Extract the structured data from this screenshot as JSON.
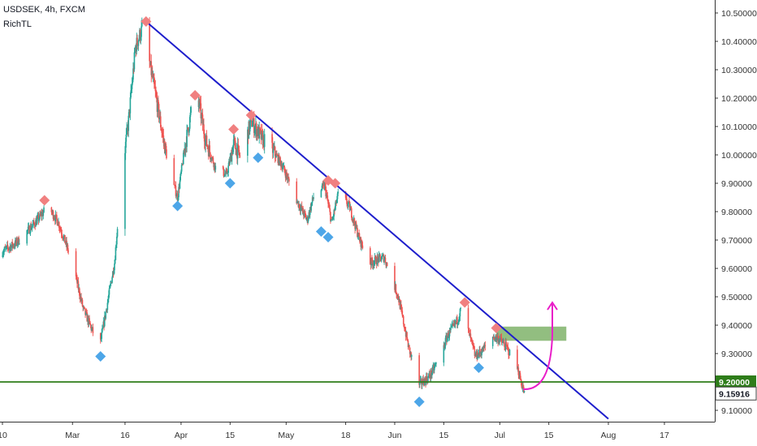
{
  "header": {
    "title": "USDSEK, 4h, FXCM",
    "indicator": "RichTL"
  },
  "colors": {
    "up": "#26a69a",
    "down": "#ef5350",
    "trendline": "#1e1ecc",
    "support": "#2e7d1a",
    "zone": "#7fb36a",
    "arrow": "#e91ec8",
    "high_marker": "#f08080",
    "low_marker": "#4da6e8",
    "axis_text": "#333333"
  },
  "chart_data": {
    "type": "candlestick",
    "title": "USDSEK, 4h, FXCM",
    "ylim": [
      9.05,
      10.52
    ],
    "y_ticks": [
      "10.50000",
      "10.40000",
      "10.30000",
      "10.20000",
      "10.10000",
      "10.00000",
      "9.90000",
      "9.80000",
      "9.70000",
      "9.60000",
      "9.50000",
      "9.40000",
      "9.30000",
      "9.20000",
      "9.10000"
    ],
    "y_tick_values": [
      10.5,
      10.4,
      10.3,
      10.2,
      10.1,
      10.0,
      9.9,
      9.8,
      9.7,
      9.6,
      9.5,
      9.4,
      9.3,
      9.2,
      9.1
    ],
    "x_ticks": [
      "10",
      "Mar",
      "16",
      "Apr",
      "15",
      "May",
      "18",
      "Jun",
      "15",
      "Jul",
      "15",
      "Aug",
      "17"
    ],
    "x_tick_dates": [
      "2020-02-10",
      "2020-03-01",
      "2020-03-16",
      "2020-04-01",
      "2020-04-15",
      "2020-05-01",
      "2020-05-18",
      "2020-06-01",
      "2020-06-15",
      "2020-07-01",
      "2020-07-15",
      "2020-08-01",
      "2020-08-17"
    ],
    "price_path": [
      [
        "2020-02-10",
        9.66
      ],
      [
        "2020-02-14",
        9.69
      ],
      [
        "2020-02-20",
        9.77
      ],
      [
        "2020-02-23",
        9.82
      ],
      [
        "2020-02-26",
        9.76
      ],
      [
        "2020-03-01",
        9.62
      ],
      [
        "2020-03-04",
        9.46
      ],
      [
        "2020-03-07",
        9.37
      ],
      [
        "2020-03-09",
        9.34
      ],
      [
        "2020-03-11",
        9.48
      ],
      [
        "2020-03-13",
        9.62
      ],
      [
        "2020-03-15",
        9.92
      ],
      [
        "2020-03-17",
        10.12
      ],
      [
        "2020-03-19",
        10.38
      ],
      [
        "2020-03-21",
        10.45
      ],
      [
        "2020-03-24",
        10.26
      ],
      [
        "2020-03-27",
        10.05
      ],
      [
        "2020-03-29",
        9.93
      ],
      [
        "2020-03-31",
        9.85
      ],
      [
        "2020-04-02",
        10.02
      ],
      [
        "2020-04-04",
        10.16
      ],
      [
        "2020-04-06",
        10.19
      ],
      [
        "2020-04-08",
        10.05
      ],
      [
        "2020-04-11",
        9.95
      ],
      [
        "2020-04-14",
        9.93
      ],
      [
        "2020-04-16",
        10.04
      ],
      [
        "2020-04-18",
        9.99
      ],
      [
        "2020-04-21",
        10.12
      ],
      [
        "2020-04-24",
        10.06
      ],
      [
        "2020-04-27",
        10.02
      ],
      [
        "2020-04-30",
        9.96
      ],
      [
        "2020-05-04",
        9.84
      ],
      [
        "2020-05-07",
        9.77
      ],
      [
        "2020-05-09",
        9.86
      ],
      [
        "2020-05-12",
        9.89
      ],
      [
        "2020-05-14",
        9.76
      ],
      [
        "2020-05-16",
        9.87
      ],
      [
        "2020-05-19",
        9.82
      ],
      [
        "2020-05-22",
        9.7
      ],
      [
        "2020-05-25",
        9.62
      ],
      [
        "2020-05-29",
        9.64
      ],
      [
        "2020-06-02",
        9.5
      ],
      [
        "2020-06-05",
        9.32
      ],
      [
        "2020-06-08",
        9.19
      ],
      [
        "2020-06-11",
        9.22
      ],
      [
        "2020-06-14",
        9.29
      ],
      [
        "2020-06-16",
        9.36
      ],
      [
        "2020-06-19",
        9.42
      ],
      [
        "2020-06-20",
        9.46
      ],
      [
        "2020-06-22",
        9.38
      ],
      [
        "2020-06-24",
        9.29
      ],
      [
        "2020-06-26",
        9.31
      ],
      [
        "2020-06-29",
        9.36
      ],
      [
        "2020-07-01",
        9.35
      ],
      [
        "2020-07-03",
        9.32
      ],
      [
        "2020-07-06",
        9.25
      ],
      [
        "2020-07-08",
        9.16
      ]
    ],
    "swing_highs": [
      [
        "2020-02-22",
        9.84
      ],
      [
        "2020-03-22",
        10.47
      ],
      [
        "2020-04-05",
        10.21
      ],
      [
        "2020-04-16",
        10.09
      ],
      [
        "2020-04-21",
        10.14
      ],
      [
        "2020-05-13",
        9.91
      ],
      [
        "2020-05-15",
        9.9
      ],
      [
        "2020-06-21",
        9.48
      ],
      [
        "2020-06-30",
        9.39
      ]
    ],
    "swing_lows": [
      [
        "2020-03-09",
        9.29
      ],
      [
        "2020-03-31",
        9.82
      ],
      [
        "2020-04-15",
        9.9
      ],
      [
        "2020-04-23",
        9.99
      ],
      [
        "2020-05-11",
        9.73
      ],
      [
        "2020-05-13",
        9.71
      ],
      [
        "2020-06-08",
        9.13
      ],
      [
        "2020-06-25",
        9.25
      ]
    ],
    "trendline": {
      "start": [
        "2020-03-22",
        10.47
      ],
      "end": [
        "2020-08-01",
        9.07
      ]
    },
    "support_level": 9.2,
    "resistance_zone": {
      "from": "2020-06-30",
      "to": "2020-07-20",
      "low": 9.345,
      "high": 9.395
    },
    "projection_arrow": {
      "from": [
        "2020-07-10",
        9.18
      ],
      "to": [
        "2020-07-16",
        9.48
      ]
    },
    "price_labels": [
      {
        "value": 9.2,
        "text": "9.20000"
      },
      {
        "value": 9.15916,
        "text": "9.15916"
      }
    ]
  }
}
